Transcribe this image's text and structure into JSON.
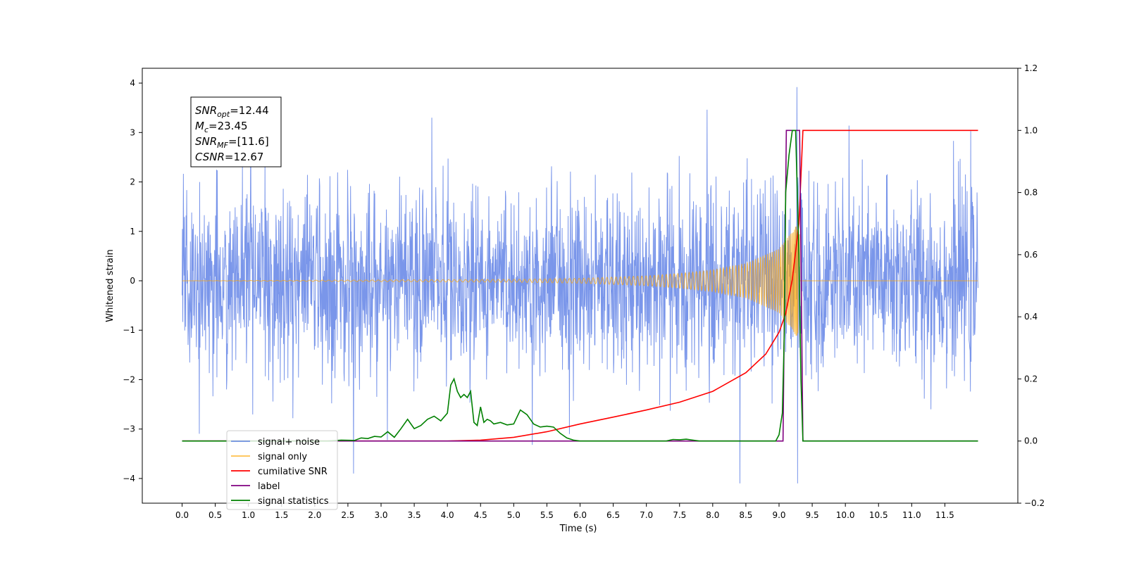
{
  "chart_data": {
    "type": "line",
    "title": "",
    "xlabel": "Time (s)",
    "ylabel": "Whitened strain",
    "y2label": "",
    "xlim": [
      -0.6,
      12.6
    ],
    "ylim": [
      -4.5,
      4.3
    ],
    "y2lim": [
      -0.2,
      1.2
    ],
    "grid": false,
    "legend_position": "lower-left",
    "x_ticks": [
      0.0,
      0.5,
      1.0,
      1.5,
      2.0,
      2.5,
      3.0,
      3.5,
      4.0,
      4.5,
      5.0,
      5.5,
      6.0,
      6.5,
      7.0,
      7.5,
      8.0,
      8.5,
      9.0,
      9.5,
      10.0,
      10.5,
      11.0,
      11.5
    ],
    "x_tick_labels": [
      "0.0",
      "0.5",
      "1.0",
      "1.5",
      "2.0",
      "2.5",
      "3.0",
      "3.5",
      "4.0",
      "4.5",
      "5.0",
      "5.5",
      "6.0",
      "6.5",
      "7.0",
      "7.5",
      "8.0",
      "8.5",
      "9.0",
      "9.5",
      "10.0",
      "10.5",
      "11.0",
      "11.5"
    ],
    "y_ticks": [
      -4,
      -3,
      -2,
      -1,
      0,
      1,
      2,
      3,
      4
    ],
    "y_tick_labels": [
      "−4",
      "−3",
      "−2",
      "−1",
      "0",
      "1",
      "2",
      "3",
      "4"
    ],
    "y2_ticks": [
      -0.2,
      0.0,
      0.2,
      0.4,
      0.6,
      0.8,
      1.0,
      1.2
    ],
    "y2_tick_labels": [
      "−0.2",
      "0.0",
      "0.2",
      "0.4",
      "0.6",
      "0.8",
      "1.0",
      "1.2"
    ],
    "annotation": {
      "lines": [
        {
          "symbol": "SNR",
          "sub": "opt",
          "value": "=12.44"
        },
        {
          "symbol": "M",
          "sub": "c",
          "value": "=23.45"
        },
        {
          "symbol": "SNR",
          "sub": "MF",
          "value": "=[11.6]"
        },
        {
          "symbol": "CSNR",
          "sub": "",
          "value": "=12.67"
        }
      ]
    },
    "series": [
      {
        "name": "signal+ noise",
        "axis": "left",
        "color": "#4169e1",
        "description": "whitened noisy strain, roughly unit-variance noise spanning about -4.1 to 3.9 over 0 to 12 s",
        "x_range": [
          0.0,
          12.0
        ],
        "noise_sigma": 0.95,
        "extremes": [
          {
            "x": 9.27,
            "y": 3.92
          },
          {
            "x": 9.28,
            "y": -4.1
          },
          {
            "x": 8.41,
            "y": -4.1
          }
        ]
      },
      {
        "name": "signal only",
        "axis": "left",
        "color": "#ffa500",
        "description": "inspiral chirp, amplitude grows until merger near 9.3 s then zero",
        "x_range": [
          0.0,
          12.0
        ],
        "peak_time": 9.31,
        "peak_amplitude": 1.2,
        "envelope": [
          [
            5.0,
            0.03
          ],
          [
            6.0,
            0.05
          ],
          [
            7.0,
            0.1
          ],
          [
            7.5,
            0.15
          ],
          [
            8.0,
            0.22
          ],
          [
            8.5,
            0.35
          ],
          [
            9.0,
            0.65
          ],
          [
            9.2,
            1.0
          ],
          [
            9.3,
            1.2
          ]
        ]
      },
      {
        "name": "cumilative SNR",
        "axis": "right",
        "color": "#ff0000",
        "x": [
          0.0,
          4.0,
          4.5,
          5.0,
          5.5,
          6.0,
          6.5,
          7.0,
          7.5,
          8.0,
          8.5,
          8.8,
          9.0,
          9.1,
          9.2,
          9.3,
          9.36,
          12.0
        ],
        "values": [
          0.0,
          0.0,
          0.003,
          0.012,
          0.03,
          0.055,
          0.077,
          0.1,
          0.125,
          0.16,
          0.22,
          0.28,
          0.35,
          0.41,
          0.52,
          0.7,
          1.0,
          1.0
        ]
      },
      {
        "name": "label",
        "axis": "right",
        "color": "#800080",
        "x": [
          0.0,
          9.06,
          9.11,
          9.31,
          9.36,
          12.0
        ],
        "values": [
          0.0,
          0.0,
          1.0,
          1.0,
          0.0,
          0.0
        ]
      },
      {
        "name": "signal statistics",
        "axis": "right",
        "color": "#008000",
        "x": [
          0.0,
          2.2,
          2.4,
          2.6,
          2.7,
          2.8,
          2.9,
          3.0,
          3.1,
          3.2,
          3.3,
          3.4,
          3.5,
          3.6,
          3.7,
          3.8,
          3.9,
          4.0,
          4.05,
          4.1,
          4.15,
          4.2,
          4.25,
          4.3,
          4.35,
          4.4,
          4.45,
          4.5,
          4.55,
          4.6,
          4.65,
          4.7,
          4.8,
          4.9,
          5.0,
          5.1,
          5.2,
          5.3,
          5.4,
          5.5,
          5.6,
          5.7,
          5.8,
          5.9,
          6.0,
          7.3,
          7.4,
          7.5,
          7.6,
          7.7,
          7.8,
          8.95,
          9.0,
          9.05,
          9.08,
          9.1,
          9.15,
          9.2,
          9.25,
          9.3,
          9.33,
          9.36,
          12.0
        ],
        "values": [
          0.0,
          0.0,
          0.003,
          0.002,
          0.01,
          0.008,
          0.015,
          0.013,
          0.03,
          0.012,
          0.04,
          0.07,
          0.04,
          0.05,
          0.07,
          0.08,
          0.065,
          0.09,
          0.18,
          0.2,
          0.16,
          0.14,
          0.15,
          0.14,
          0.16,
          0.06,
          0.05,
          0.11,
          0.06,
          0.07,
          0.065,
          0.055,
          0.06,
          0.052,
          0.055,
          0.1,
          0.085,
          0.055,
          0.045,
          0.048,
          0.045,
          0.025,
          0.01,
          0.003,
          0.0,
          0.0,
          0.005,
          0.004,
          0.006,
          0.003,
          0.0,
          0.0,
          0.02,
          0.09,
          0.35,
          0.8,
          0.92,
          1.0,
          1.0,
          0.6,
          0.2,
          0.0,
          0.0
        ]
      }
    ],
    "legend": [
      {
        "label": "signal+ noise",
        "color": "#4169e1"
      },
      {
        "label": "signal only",
        "color": "#ffa500"
      },
      {
        "label": "cumilative SNR",
        "color": "#ff0000"
      },
      {
        "label": "label",
        "color": "#800080"
      },
      {
        "label": "signal statistics",
        "color": "#008000"
      }
    ]
  }
}
